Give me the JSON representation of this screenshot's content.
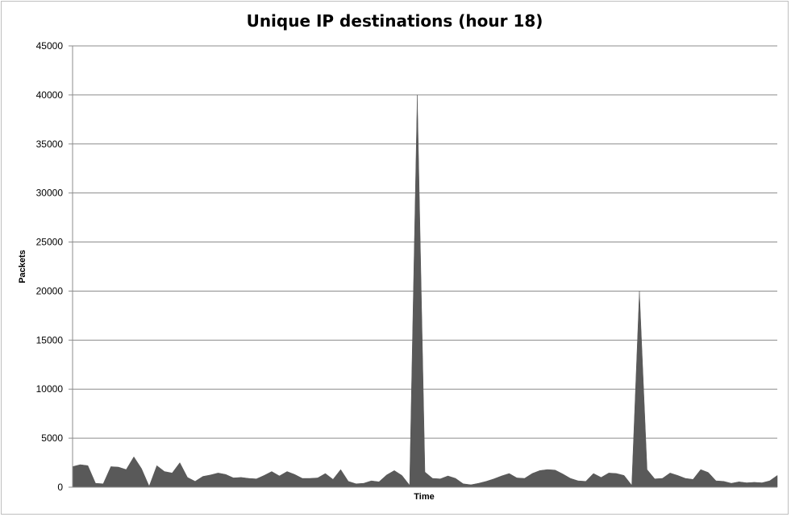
{
  "chart_data": {
    "type": "area",
    "title": "Unique IP destinations (hour 18)",
    "xlabel": "Time",
    "ylabel": "Packets",
    "ylim": [
      0,
      45000
    ],
    "yticks": [
      "0",
      "5000",
      "10000",
      "15000",
      "20000",
      "25000",
      "30000",
      "35000",
      "40000",
      "45000"
    ],
    "grid": true,
    "legend": "none",
    "series": [
      {
        "color": "#595959",
        "values": [
          2100,
          2300,
          2200,
          400,
          350,
          2100,
          2050,
          1800,
          3100,
          1900,
          100,
          2200,
          1600,
          1450,
          2500,
          1000,
          600,
          1100,
          1250,
          1450,
          1300,
          950,
          1000,
          900,
          850,
          1200,
          1600,
          1150,
          1600,
          1300,
          900,
          900,
          950,
          1400,
          800,
          1800,
          600,
          350,
          400,
          650,
          550,
          1250,
          1700,
          1200,
          200,
          40000,
          1550,
          900,
          850,
          1150,
          900,
          350,
          250,
          400,
          600,
          850,
          1150,
          1400,
          950,
          900,
          1400,
          1700,
          1800,
          1750,
          1350,
          900,
          650,
          600,
          1400,
          1000,
          1450,
          1400,
          1200,
          200,
          20000,
          1800,
          850,
          900,
          1450,
          1200,
          900,
          800,
          1800,
          1500,
          650,
          600,
          400,
          550,
          450,
          500,
          450,
          650,
          1200
        ]
      }
    ]
  }
}
